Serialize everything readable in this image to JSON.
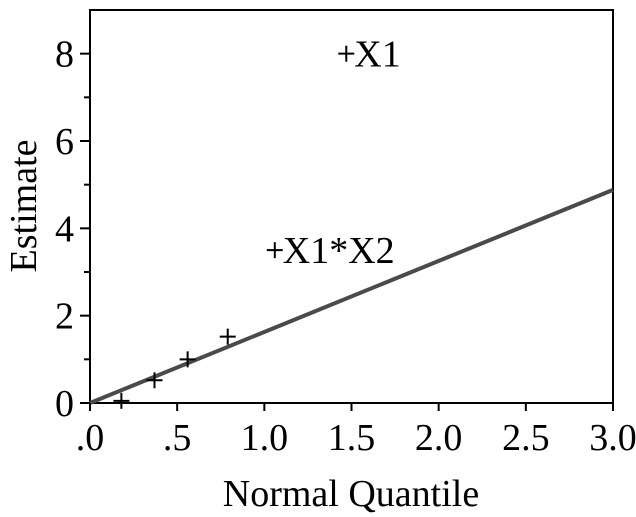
{
  "chart_data": {
    "type": "scatter",
    "title": "",
    "xlabel": "Normal Quantile",
    "ylabel": "Estimate",
    "xlim": [
      0,
      3
    ],
    "ylim": [
      0,
      9
    ],
    "grid": false,
    "x_ticks": [
      {
        "value": 0,
        "label": ".0"
      },
      {
        "value": 0.5,
        "label": ".5"
      },
      {
        "value": 1,
        "label": "1.0"
      },
      {
        "value": 1.5,
        "label": "1.5"
      },
      {
        "value": 2,
        "label": "2.0"
      },
      {
        "value": 2.5,
        "label": "2.5"
      },
      {
        "value": 3,
        "label": "3.0"
      }
    ],
    "y_ticks": [
      {
        "value": 0,
        "label": "0"
      },
      {
        "value": 2,
        "label": "2"
      },
      {
        "value": 4,
        "label": "4"
      },
      {
        "value": 6,
        "label": "6"
      },
      {
        "value": 8,
        "label": "8"
      }
    ],
    "y_minor_ticks": [
      1,
      3,
      5,
      7
    ],
    "points": [
      {
        "x": 0.18,
        "y": 0.05,
        "label": ""
      },
      {
        "x": 0.37,
        "y": 0.52,
        "label": ""
      },
      {
        "x": 0.56,
        "y": 1.0,
        "label": ""
      },
      {
        "x": 0.79,
        "y": 1.52,
        "label": ""
      },
      {
        "x": 1.06,
        "y": 3.5,
        "label": "X1*X2"
      },
      {
        "x": 1.47,
        "y": 8.0,
        "label": "X1"
      }
    ],
    "reference_line": {
      "x0": 0,
      "y0": 0,
      "x1": 3,
      "y1": 4.88,
      "color": "#4a4a4a"
    },
    "colors": {
      "marker": "#000000",
      "axis": "#000000",
      "line": "#4a4a4a"
    }
  }
}
